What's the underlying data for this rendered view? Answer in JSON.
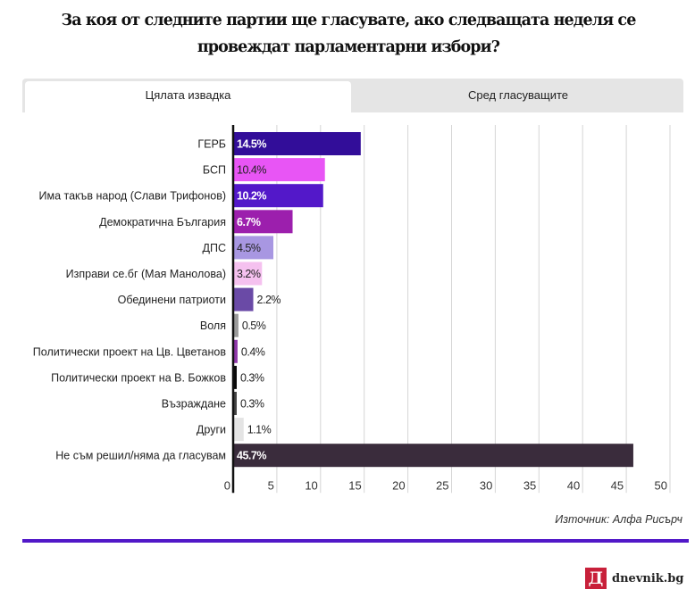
{
  "title": "За коя от следните партии ще гласувате, ако следващата неделя се провеждат парламентарни избори?",
  "tabs": [
    {
      "label": "Цялата извадка",
      "active": true
    },
    {
      "label": "Сред гласуващите",
      "active": false
    }
  ],
  "source": "Източник: Алфа Рисърч",
  "accent_color": "#5118c8",
  "logo": {
    "mark": "Д",
    "text": "dnevnik.bg",
    "color": "#c8203a"
  },
  "chart_data": {
    "type": "bar",
    "orientation": "horizontal",
    "title": "За коя от следните партии ще гласувате, ако следващата неделя се провеждат парламентарни избори?",
    "xlabel": "",
    "ylabel": "",
    "xlim": [
      0,
      50
    ],
    "xticks": [
      0,
      5,
      10,
      15,
      20,
      25,
      30,
      35,
      40,
      45,
      50
    ],
    "grid": true,
    "unit": "%",
    "categories": [
      "ГЕРБ",
      "БСП",
      "Има такъв народ (Слави Трифонов)",
      "Демократична България",
      "ДПС",
      "Изправи се.бг (Мая Манолова)",
      "Обединени патриоти",
      "Воля",
      "Политически проект на Цв. Цветанов",
      "Политически проект на В. Божков",
      "Възраждане",
      "Други",
      "Не съм решил/няма да гласувам"
    ],
    "values": [
      14.5,
      10.4,
      10.2,
      6.7,
      4.5,
      3.2,
      2.2,
      0.5,
      0.4,
      0.3,
      0.3,
      1.1,
      45.7
    ],
    "labels": [
      "14.5%",
      "10.4%",
      "10.2%",
      "6.7%",
      "4.5%",
      "3.2%",
      "2.2%",
      "0.5%",
      "0.4%",
      "0.3%",
      "0.3%",
      "1.1%",
      "45.7%"
    ],
    "colors": [
      "#320d99",
      "#e855f5",
      "#5318c9",
      "#9c1fad",
      "#a897e2",
      "#f5c1ef",
      "#6a4aa6",
      "#9a9a9a",
      "#8e37a8",
      "#0a0a0a",
      "#444444",
      "#e4e4e4",
      "#3a2c3c"
    ],
    "label_colors": [
      "#ffffff",
      "#222222",
      "#ffffff",
      "#ffffff",
      "#222222",
      "#222222",
      "#222222",
      "#222222",
      "#222222",
      "#222222",
      "#222222",
      "#222222",
      "#ffffff"
    ]
  }
}
